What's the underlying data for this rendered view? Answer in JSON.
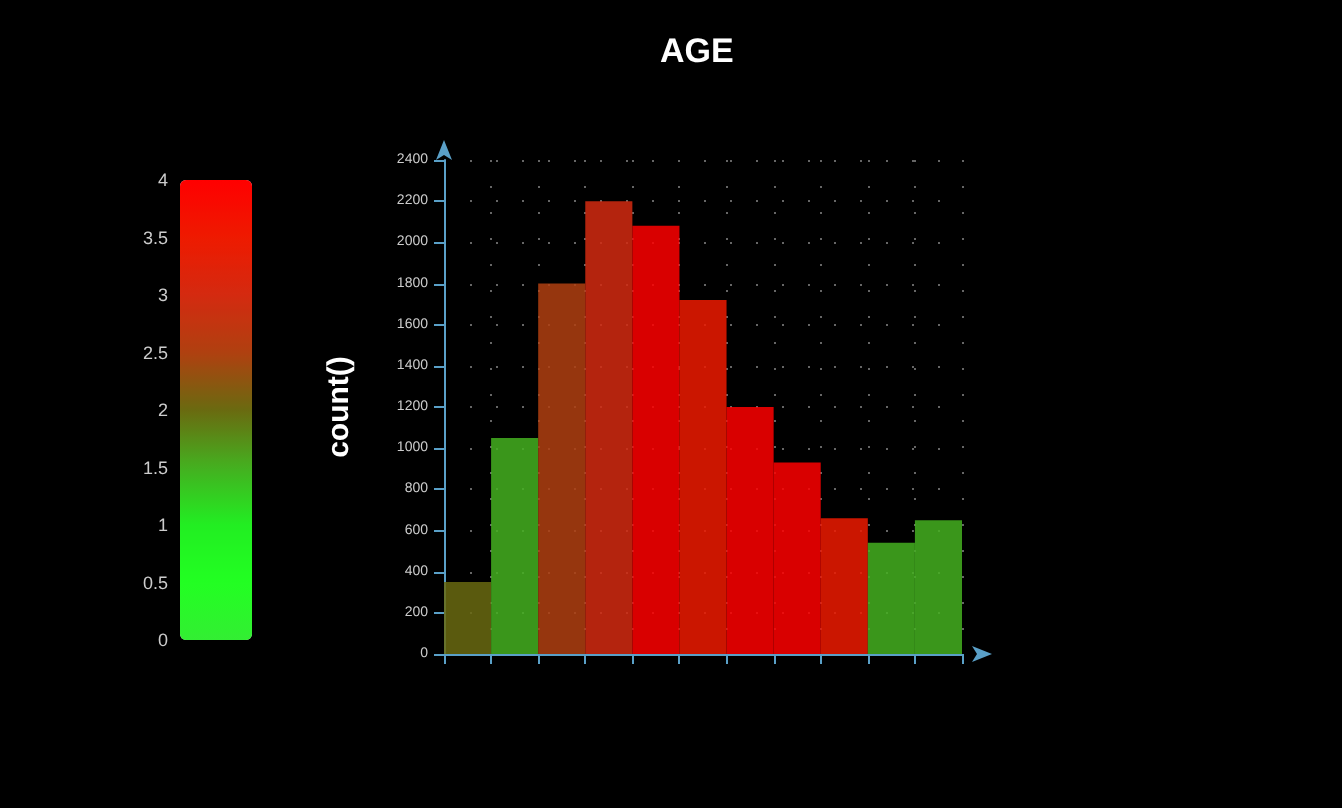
{
  "chart_data": {
    "type": "bar",
    "title": "AGE",
    "ylabel": "count()",
    "categories": [
      null,
      null,
      null,
      null,
      null,
      null,
      null,
      null,
      null,
      null,
      null
    ],
    "values": [
      350,
      1050,
      1800,
      2200,
      2080,
      1720,
      1200,
      930,
      660,
      540,
      650
    ],
    "cvalues": [
      2.0,
      1.5,
      2.5,
      3.0,
      4.0,
      3.5,
      4.0,
      4.0,
      3.5,
      1.5,
      1.5
    ],
    "clim": [
      0,
      4
    ],
    "cticks": [
      0,
      0.5,
      1,
      1.5,
      2,
      2.5,
      3,
      3.5,
      4
    ],
    "ylim": [
      0,
      2400
    ],
    "yticks": [
      0,
      200,
      400,
      600,
      800,
      1000,
      1200,
      1400,
      1600,
      1800,
      2000,
      2200,
      2400
    ],
    "grid": true,
    "tick_labels": "y"
  }
}
